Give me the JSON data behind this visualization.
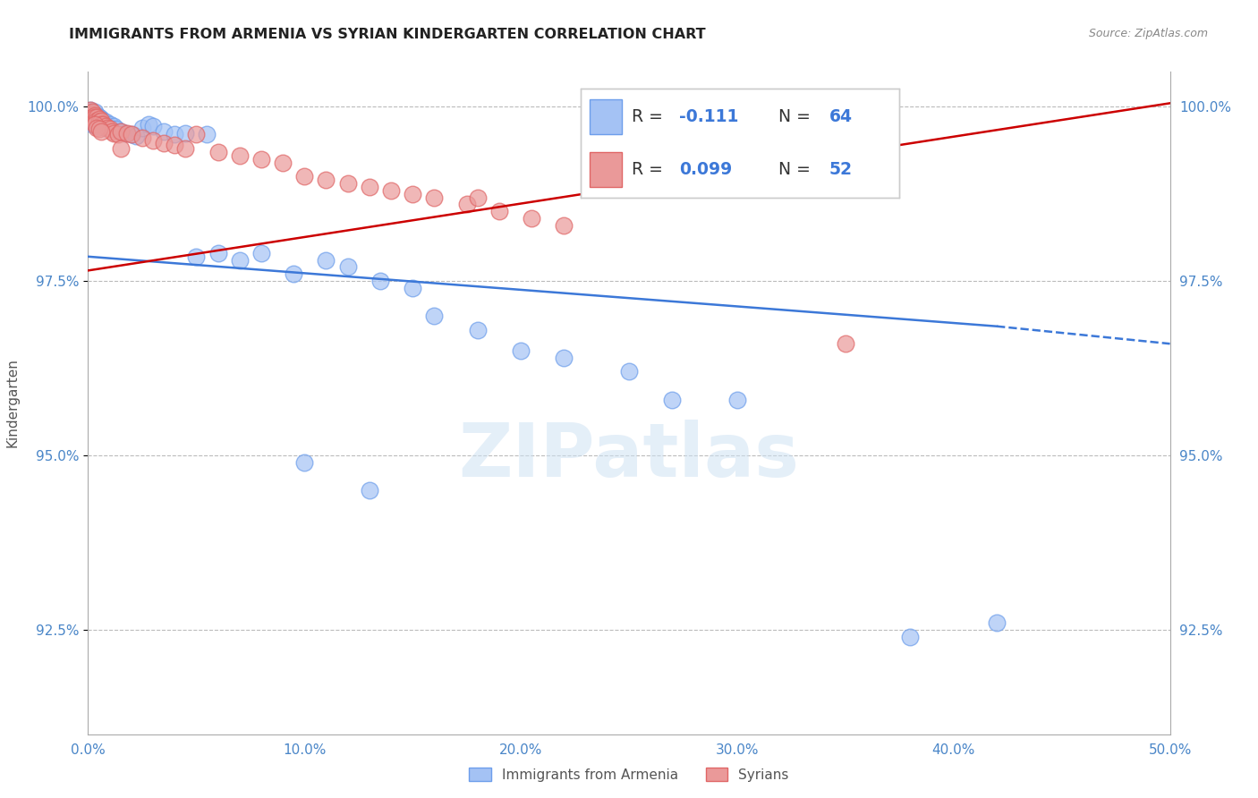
{
  "title": "IMMIGRANTS FROM ARMENIA VS SYRIAN KINDERGARTEN CORRELATION CHART",
  "source": "Source: ZipAtlas.com",
  "ylabel": "Kindergarten",
  "watermark": "ZIPatlas",
  "x_min": 0.0,
  "x_max": 0.5,
  "y_min": 0.91,
  "y_max": 1.005,
  "x_tick_labels": [
    "0.0%",
    "10.0%",
    "20.0%",
    "30.0%",
    "40.0%",
    "50.0%"
  ],
  "x_tick_vals": [
    0.0,
    0.1,
    0.2,
    0.3,
    0.4,
    0.5
  ],
  "y_tick_labels": [
    "92.5%",
    "95.0%",
    "97.5%",
    "100.0%"
  ],
  "y_tick_vals": [
    0.925,
    0.95,
    0.975,
    1.0
  ],
  "legend_bottom": [
    "Immigrants from Armenia",
    "Syrians"
  ],
  "blue_fill": "#a4c2f4",
  "blue_edge": "#6d9eeb",
  "pink_fill": "#ea9999",
  "pink_edge": "#e06666",
  "blue_line_color": "#3c78d8",
  "pink_line_color": "#cc0000",
  "label_color": "#4a86c8",
  "R_blue": -0.111,
  "N_blue": 64,
  "R_pink": 0.099,
  "N_pink": 52,
  "blue_scatter_x": [
    0.001,
    0.001,
    0.001,
    0.001,
    0.002,
    0.002,
    0.002,
    0.002,
    0.003,
    0.003,
    0.003,
    0.003,
    0.003,
    0.004,
    0.004,
    0.004,
    0.004,
    0.005,
    0.005,
    0.005,
    0.006,
    0.006,
    0.007,
    0.007,
    0.008,
    0.008,
    0.008,
    0.009,
    0.01,
    0.01,
    0.011,
    0.012,
    0.013,
    0.015,
    0.017,
    0.02,
    0.022,
    0.025,
    0.028,
    0.03,
    0.035,
    0.04,
    0.045,
    0.05,
    0.055,
    0.06,
    0.07,
    0.08,
    0.095,
    0.11,
    0.12,
    0.135,
    0.15,
    0.16,
    0.18,
    0.2,
    0.22,
    0.25,
    0.27,
    0.3,
    0.38,
    0.42,
    0.1,
    0.13
  ],
  "blue_scatter_y": [
    0.9995,
    0.9992,
    0.9988,
    0.9985,
    0.999,
    0.9985,
    0.998,
    0.9975,
    0.9992,
    0.9988,
    0.9985,
    0.998,
    0.9975,
    0.9988,
    0.9982,
    0.9978,
    0.9972,
    0.9985,
    0.998,
    0.9975,
    0.9982,
    0.9978,
    0.998,
    0.9975,
    0.9978,
    0.9975,
    0.997,
    0.9972,
    0.9975,
    0.997,
    0.9968,
    0.9972,
    0.9968,
    0.9965,
    0.9962,
    0.996,
    0.9958,
    0.997,
    0.9975,
    0.9972,
    0.9965,
    0.996,
    0.9962,
    0.9785,
    0.996,
    0.979,
    0.978,
    0.979,
    0.976,
    0.978,
    0.977,
    0.975,
    0.974,
    0.97,
    0.968,
    0.965,
    0.964,
    0.962,
    0.958,
    0.958,
    0.924,
    0.926,
    0.949,
    0.945
  ],
  "pink_scatter_x": [
    0.001,
    0.001,
    0.001,
    0.002,
    0.002,
    0.003,
    0.003,
    0.003,
    0.004,
    0.004,
    0.005,
    0.005,
    0.006,
    0.006,
    0.007,
    0.008,
    0.009,
    0.01,
    0.011,
    0.012,
    0.014,
    0.015,
    0.018,
    0.02,
    0.025,
    0.03,
    0.035,
    0.04,
    0.045,
    0.05,
    0.06,
    0.07,
    0.08,
    0.09,
    0.1,
    0.11,
    0.12,
    0.13,
    0.14,
    0.15,
    0.16,
    0.175,
    0.19,
    0.205,
    0.22,
    0.003,
    0.004,
    0.005,
    0.006,
    0.015,
    0.35,
    0.18
  ],
  "pink_scatter_y": [
    0.9995,
    0.999,
    0.9988,
    0.9992,
    0.9985,
    0.9988,
    0.9985,
    0.998,
    0.9985,
    0.998,
    0.9982,
    0.9978,
    0.998,
    0.9975,
    0.9975,
    0.9972,
    0.997,
    0.9968,
    0.9965,
    0.9962,
    0.996,
    0.9965,
    0.9962,
    0.996,
    0.9955,
    0.9952,
    0.9948,
    0.9945,
    0.994,
    0.996,
    0.9935,
    0.993,
    0.9925,
    0.992,
    0.99,
    0.9895,
    0.989,
    0.9885,
    0.988,
    0.9875,
    0.987,
    0.986,
    0.985,
    0.984,
    0.983,
    0.9975,
    0.997,
    0.9968,
    0.9965,
    0.994,
    0.966,
    0.987
  ],
  "blue_trend_x0": 0.0,
  "blue_trend_x1": 0.42,
  "blue_trend_x2": 0.5,
  "blue_trend_y0": 0.9785,
  "blue_trend_y1": 0.9685,
  "blue_trend_y2": 0.966,
  "pink_trend_x0": 0.0,
  "pink_trend_x1": 0.5,
  "pink_trend_y0": 0.9765,
  "pink_trend_y1": 1.0005
}
